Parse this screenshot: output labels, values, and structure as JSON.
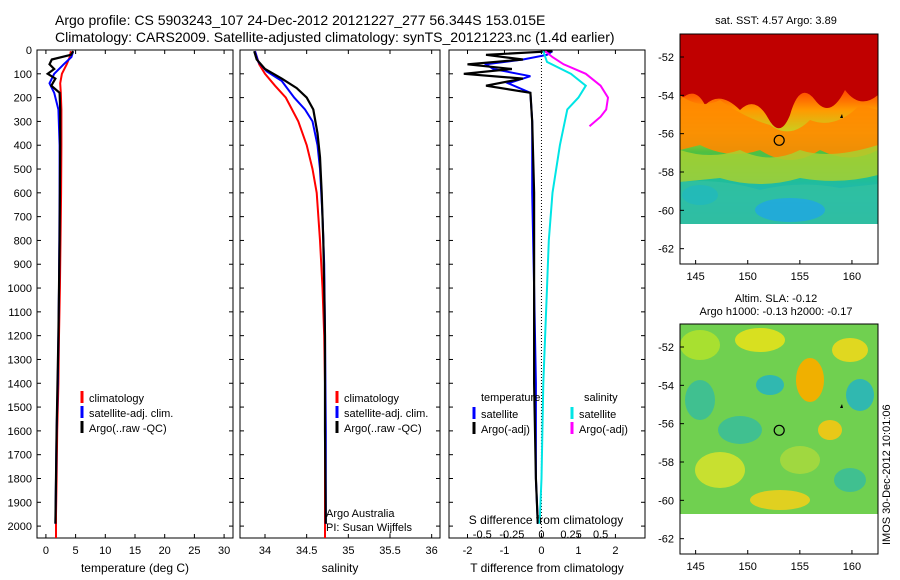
{
  "header": {
    "line1": "Argo profile: CS 5903243_107 24-Dec-2012 20121227_277 56.344S 153.015E",
    "line2": "Climatology: CARS2009. Satellite-adjusted climatology: synTS_20121223.nc (1.4d earlier)"
  },
  "credit": "IMOS 30-Dec-2012 10:01:06",
  "colors": {
    "climatology": "#ff0000",
    "satellite": "#0000ff",
    "argo": "#000000",
    "salinity_satellite": "#00e5e5",
    "salinity_argo": "#ff00ff"
  },
  "depth_axis": {
    "ylim": [
      0,
      2050
    ],
    "ticks": [
      0,
      100,
      200,
      300,
      400,
      500,
      600,
      700,
      800,
      900,
      1000,
      1100,
      1200,
      1300,
      1400,
      1500,
      1600,
      1700,
      1800,
      1900,
      2000
    ]
  },
  "chart_data": [
    {
      "type": "line",
      "id": "temperature",
      "xlabel": "temperature (deg C)",
      "xlim": [
        -1.5,
        31.5
      ],
      "xticks": [
        0,
        5,
        10,
        15,
        20,
        25,
        30
      ],
      "legend": [
        "climatology",
        "satellite-adj. clim.",
        "Argo(..raw -QC)"
      ],
      "series": [
        {
          "name": "climatology",
          "color": "#ff0000",
          "points": [
            [
              4.2,
              5
            ],
            [
              4.0,
              30
            ],
            [
              3.5,
              60
            ],
            [
              2.7,
              100
            ],
            [
              2.4,
              140
            ],
            [
              2.5,
              180
            ],
            [
              2.6,
              250
            ],
            [
              2.6,
              400
            ],
            [
              2.55,
              600
            ],
            [
              2.45,
              800
            ],
            [
              2.35,
              1000
            ],
            [
              2.2,
              1200
            ],
            [
              2.1,
              1400
            ],
            [
              1.9,
              1600
            ],
            [
              1.8,
              1800
            ],
            [
              1.7,
              1950
            ],
            [
              1.7,
              2050
            ]
          ]
        },
        {
          "name": "satellite-adj. clim.",
          "color": "#0000ff",
          "points": [
            [
              4.6,
              5
            ],
            [
              4.3,
              30
            ],
            [
              3.0,
              60
            ],
            [
              1.4,
              100
            ],
            [
              0.6,
              140
            ],
            [
              1.4,
              180
            ],
            [
              2.1,
              250
            ],
            [
              2.3,
              400
            ],
            [
              2.3,
              600
            ],
            [
              2.25,
              800
            ],
            [
              2.2,
              1000
            ],
            [
              2.1,
              1200
            ],
            [
              2.0,
              1400
            ],
            [
              1.8,
              1600
            ],
            [
              1.7,
              1800
            ],
            [
              1.6,
              1990
            ]
          ]
        },
        {
          "name": "Argo(..raw -QC)",
          "color": "#000000",
          "points": [
            [
              4.6,
              5
            ],
            [
              4.2,
              20
            ],
            [
              1.0,
              40
            ],
            [
              0.6,
              60
            ],
            [
              1.4,
              80
            ],
            [
              0.3,
              100
            ],
            [
              1.6,
              120
            ],
            [
              0.9,
              150
            ],
            [
              2.3,
              180
            ],
            [
              2.4,
              250
            ],
            [
              2.4,
              400
            ],
            [
              2.35,
              600
            ],
            [
              2.3,
              800
            ],
            [
              2.2,
              1000
            ],
            [
              2.1,
              1200
            ],
            [
              1.95,
              1400
            ],
            [
              1.8,
              1600
            ],
            [
              1.7,
              1800
            ],
            [
              1.6,
              1990
            ]
          ]
        }
      ]
    },
    {
      "type": "line",
      "id": "salinity",
      "xlabel": "salinity",
      "xlim": [
        33.7,
        36.1
      ],
      "xticks": [
        34,
        34.5,
        35,
        35.5,
        36
      ],
      "legend": [
        "climatology",
        "satellite-adj. clim.",
        "Argo(..raw -QC)"
      ],
      "annotations": [
        "Argo Australia",
        "PI: Susan Wijffels"
      ],
      "series": [
        {
          "name": "climatology",
          "color": "#ff0000",
          "points": [
            [
              33.88,
              5
            ],
            [
              33.93,
              60
            ],
            [
              34.0,
              100
            ],
            [
              34.12,
              150
            ],
            [
              34.25,
              200
            ],
            [
              34.4,
              300
            ],
            [
              34.5,
              400
            ],
            [
              34.57,
              500
            ],
            [
              34.62,
              600
            ],
            [
              34.66,
              800
            ],
            [
              34.69,
              1000
            ],
            [
              34.71,
              1200
            ],
            [
              34.72,
              1400
            ],
            [
              34.72,
              1600
            ],
            [
              34.72,
              1800
            ],
            [
              34.72,
              2050
            ]
          ]
        },
        {
          "name": "satellite-adj. clim.",
          "color": "#0000ff",
          "points": [
            [
              33.88,
              5
            ],
            [
              33.92,
              50
            ],
            [
              34.02,
              90
            ],
            [
              34.2,
              130
            ],
            [
              34.35,
              200
            ],
            [
              34.48,
              250
            ],
            [
              34.57,
              300
            ],
            [
              34.63,
              400
            ],
            [
              34.66,
              500
            ],
            [
              34.69,
              700
            ],
            [
              34.71,
              900
            ],
            [
              34.72,
              1200
            ],
            [
              34.73,
              1600
            ],
            [
              34.73,
              1990
            ]
          ]
        },
        {
          "name": "Argo(..raw -QC)",
          "color": "#000000",
          "points": [
            [
              33.87,
              5
            ],
            [
              33.9,
              40
            ],
            [
              34.0,
              80
            ],
            [
              34.2,
              120
            ],
            [
              34.38,
              160
            ],
            [
              34.5,
              200
            ],
            [
              34.58,
              250
            ],
            [
              34.63,
              350
            ],
            [
              34.66,
              450
            ],
            [
              34.68,
              600
            ],
            [
              34.7,
              800
            ],
            [
              34.71,
              1000
            ],
            [
              34.72,
              1200
            ],
            [
              34.72,
              1600
            ],
            [
              34.73,
              1990
            ]
          ]
        }
      ]
    },
    {
      "type": "line",
      "id": "difference",
      "xlabel": "T difference from climatology",
      "xlabel_top": "S difference from climatology",
      "xlim": [
        -2.5,
        2.8
      ],
      "xticks": [
        -2,
        -1,
        0,
        1,
        2
      ],
      "xticks_top_labels": [
        "-0.5",
        "-0.25",
        "0",
        "0.25",
        "0.5"
      ],
      "legend_headers": [
        "temperature",
        "salinity"
      ],
      "legend": [
        "satellite",
        "Argo(-adj)",
        "satellite",
        "Argo(-adj)"
      ],
      "series": [
        {
          "name": "satellite",
          "group": "temperature",
          "color": "#0000ff",
          "points": [
            [
              0.3,
              5
            ],
            [
              0.15,
              20
            ],
            [
              -0.5,
              40
            ],
            [
              -1.5,
              60
            ],
            [
              -1.3,
              80
            ],
            [
              -0.3,
              110
            ],
            [
              -0.9,
              140
            ],
            [
              -0.3,
              180
            ],
            [
              -0.25,
              300
            ],
            [
              -0.25,
              600
            ],
            [
              -0.2,
              1000
            ],
            [
              -0.15,
              1400
            ],
            [
              -0.15,
              1800
            ],
            [
              -0.1,
              1990
            ]
          ]
        },
        {
          "name": "Argo(-adj)",
          "group": "temperature",
          "color": "#000000",
          "points": [
            [
              0.3,
              5
            ],
            [
              -1.5,
              20
            ],
            [
              -0.5,
              40
            ],
            [
              -2.0,
              60
            ],
            [
              -0.8,
              80
            ],
            [
              -2.1,
              100
            ],
            [
              -0.5,
              120
            ],
            [
              -1.5,
              150
            ],
            [
              -0.3,
              180
            ],
            [
              -0.25,
              300
            ],
            [
              -0.2,
              600
            ],
            [
              -0.2,
              1000
            ],
            [
              -0.2,
              1400
            ],
            [
              -0.15,
              1800
            ],
            [
              -0.1,
              1990
            ]
          ]
        },
        {
          "name": "satellite",
          "group": "salinity",
          "color": "#00e5e5",
          "points": [
            [
              0.05,
              5
            ],
            [
              0.15,
              50
            ],
            [
              0.8,
              100
            ],
            [
              1.2,
              150
            ],
            [
              1.0,
              200
            ],
            [
              0.7,
              250
            ],
            [
              0.5,
              400
            ],
            [
              0.3,
              600
            ],
            [
              0.2,
              800
            ],
            [
              0.15,
              1000
            ],
            [
              0.05,
              1400
            ],
            [
              0.0,
              1800
            ],
            [
              -0.05,
              1990
            ]
          ]
        },
        {
          "name": "Argo(-adj)",
          "group": "salinity",
          "color": "#ff00ff",
          "points": [
            [
              0.1,
              5
            ],
            [
              0.3,
              30
            ],
            [
              0.6,
              60
            ],
            [
              1.2,
              100
            ],
            [
              1.6,
              150
            ],
            [
              1.8,
              200
            ],
            [
              1.75,
              250
            ],
            [
              1.6,
              280
            ],
            [
              1.3,
              320
            ]
          ]
        }
      ]
    },
    {
      "type": "heatmap",
      "id": "sst-map",
      "title": "sat. SST: 4.57  Argo: 3.89",
      "xlim": [
        143.5,
        162.5
      ],
      "ylim": [
        -62.8,
        -50.8
      ],
      "xticks": [
        145,
        150,
        155,
        160
      ],
      "yticks": [
        -52,
        -54,
        -56,
        -58,
        -60,
        -62
      ],
      "marker": [
        153.015,
        -56.344
      ]
    },
    {
      "type": "heatmap",
      "id": "sla-map",
      "title": "Altim. SLA: -0.12",
      "subtitle": "Argo h1000: -0.13 h2000: -0.17",
      "xlim": [
        143.5,
        162.5
      ],
      "ylim": [
        -62.8,
        -50.8
      ],
      "xticks": [
        145,
        150,
        155,
        160
      ],
      "yticks": [
        -52,
        -54,
        -56,
        -58,
        -60,
        -62
      ],
      "marker": [
        153.015,
        -56.344
      ]
    }
  ]
}
